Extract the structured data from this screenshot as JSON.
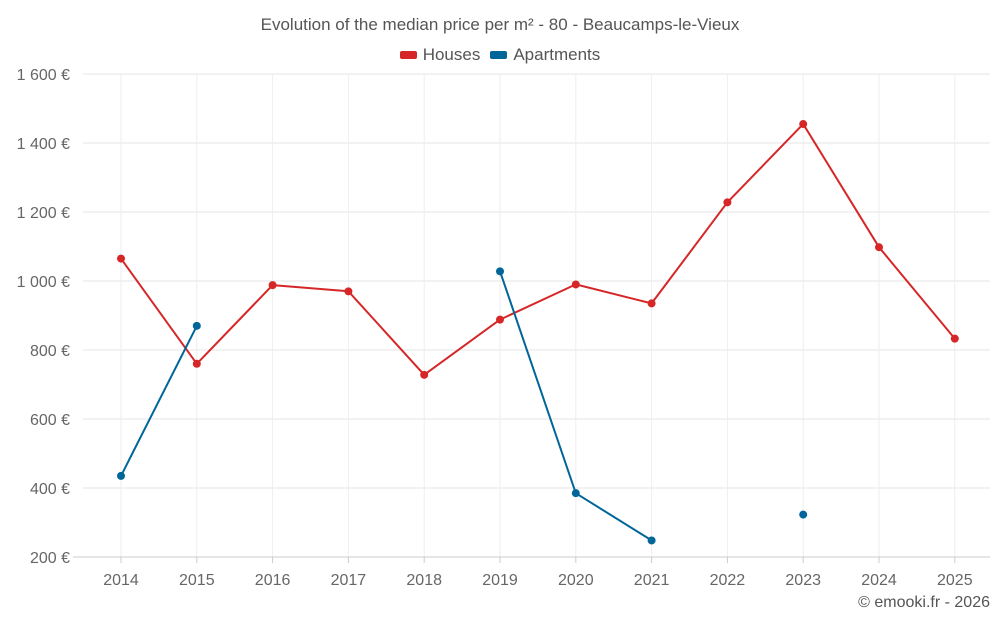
{
  "chart_data": {
    "type": "line",
    "title": "Evolution of the median price per m² - 80 - Beaucamps-le-Vieux",
    "categories": [
      "2014",
      "2015",
      "2016",
      "2017",
      "2018",
      "2019",
      "2020",
      "2021",
      "2022",
      "2023",
      "2024",
      "2025"
    ],
    "ylim": [
      200,
      1600
    ],
    "yticks": [
      200,
      400,
      600,
      800,
      1000,
      1200,
      1400,
      1600
    ],
    "ytick_labels": [
      "200 €",
      "400 €",
      "600 €",
      "800 €",
      "1 000 €",
      "1 200 €",
      "1 400 €",
      "1 600 €"
    ],
    "grid": true,
    "legend_position": "top-center",
    "series": [
      {
        "name": "Houses",
        "color": "#d62728",
        "values": [
          1065,
          760,
          988,
          970,
          728,
          888,
          990,
          935,
          1228,
          1455,
          1098,
          833
        ]
      },
      {
        "name": "Apartments",
        "color": "#006699",
        "values": [
          435,
          870,
          null,
          null,
          null,
          1028,
          385,
          248,
          null,
          323,
          null,
          null
        ]
      }
    ]
  },
  "credit": "© emooki.fr - 2026"
}
